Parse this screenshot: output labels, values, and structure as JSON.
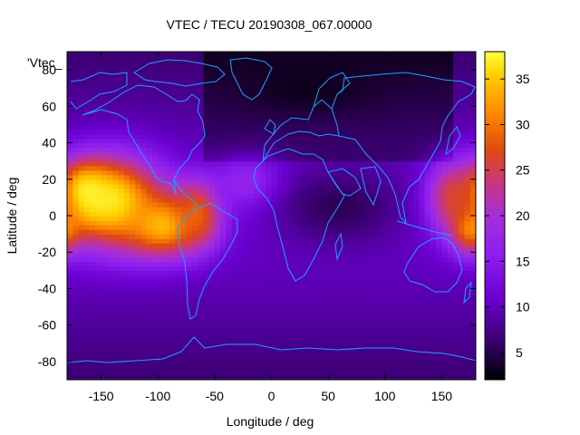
{
  "chart_data": {
    "type": "heatmap",
    "title": "VTEC / TECU 20190308_067.00000",
    "xlabel": "Longitude / deg",
    "ylabel": "Latitude / deg",
    "legend_key": "'Vtec_",
    "xlim": [
      -180,
      180
    ],
    "ylim": [
      -90,
      90
    ],
    "x_ticks": [
      {
        "value": -150,
        "label": "-150"
      },
      {
        "value": -100,
        "label": "-100"
      },
      {
        "value": -50,
        "label": "-50"
      },
      {
        "value": 0,
        "label": "0"
      },
      {
        "value": 50,
        "label": "50"
      },
      {
        "value": 100,
        "label": "100"
      },
      {
        "value": 150,
        "label": "150"
      }
    ],
    "y_ticks": [
      {
        "value": 80,
        "label": "80"
      },
      {
        "value": 60,
        "label": "60"
      },
      {
        "value": 40,
        "label": "40"
      },
      {
        "value": 20,
        "label": "20"
      },
      {
        "value": 0,
        "label": "0"
      },
      {
        "value": -20,
        "label": "-20"
      },
      {
        "value": -40,
        "label": "-40"
      },
      {
        "value": -60,
        "label": "-60"
      },
      {
        "value": -80,
        "label": "-80"
      }
    ],
    "colorbar": {
      "range": [
        2,
        38
      ],
      "ticks": [
        {
          "value": 5,
          "label": "5"
        },
        {
          "value": 10,
          "label": "10"
        },
        {
          "value": 15,
          "label": "15"
        },
        {
          "value": 20,
          "label": "20"
        },
        {
          "value": 25,
          "label": "25"
        },
        {
          "value": 30,
          "label": "30"
        },
        {
          "value": 35,
          "label": "35"
        }
      ]
    },
    "colormap": [
      "#000000",
      "#3a0070",
      "#6a00d0",
      "#8c1ef0",
      "#a62fd8",
      "#c8367f",
      "#e04a10",
      "#ff8c00",
      "#ffd000",
      "#ffff40"
    ],
    "coastline_color": "#1fa0ff",
    "grid": false,
    "tec_features": [
      {
        "lon": -140,
        "lat": 8,
        "value": 36,
        "sigma_lon": 30,
        "sigma_lat": 17
      },
      {
        "lon": -165,
        "lat": 12,
        "value": 38,
        "sigma_lon": 16,
        "sigma_lat": 11
      },
      {
        "lon": -95,
        "lat": -5,
        "value": 33,
        "sigma_lon": 25,
        "sigma_lat": 12
      },
      {
        "lon": -65,
        "lat": 2,
        "value": 28,
        "sigma_lon": 14,
        "sigma_lat": 12
      },
      {
        "lon": 175,
        "lat": -5,
        "value": 32,
        "sigma_lon": 12,
        "sigma_lat": 10
      },
      {
        "lon": 160,
        "lat": 10,
        "value": 26,
        "sigma_lon": 16,
        "sigma_lat": 13
      },
      {
        "lon": -20,
        "lat": 18,
        "value": 16,
        "sigma_lon": 22,
        "sigma_lat": 10
      },
      {
        "lon": 60,
        "lat": 5,
        "value": 5,
        "sigma_lon": 40,
        "sigma_lat": 15
      },
      {
        "lon": 30,
        "lat": 70,
        "value": 3,
        "sigma_lon": 40,
        "sigma_lat": 10
      }
    ]
  }
}
